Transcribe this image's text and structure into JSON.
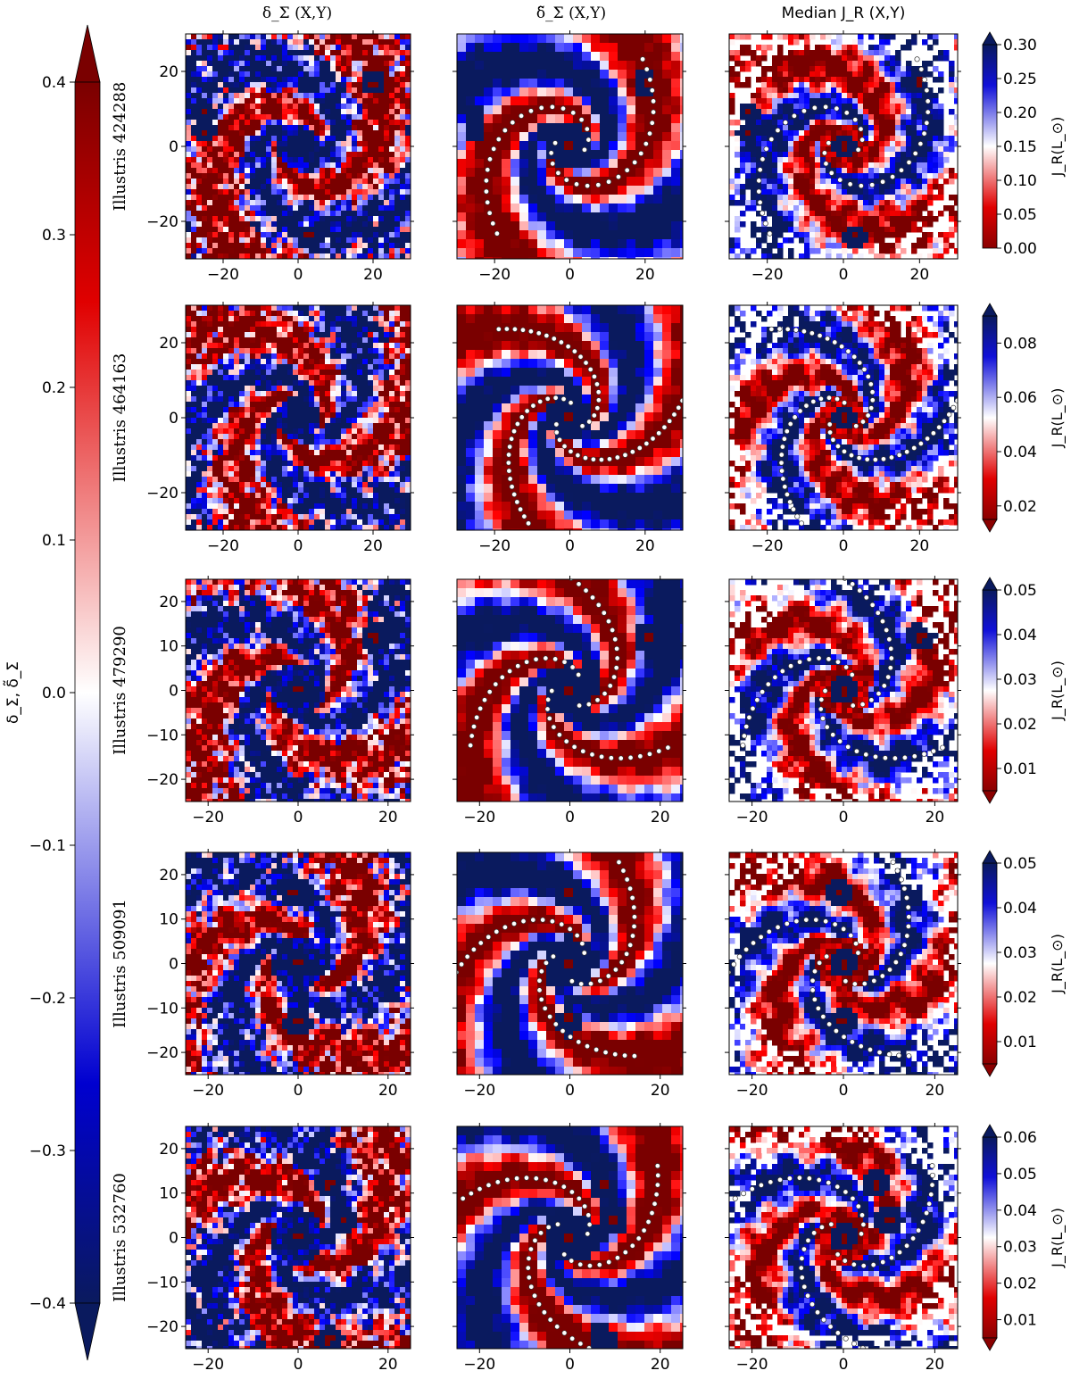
{
  "figure": {
    "column_titles": [
      "δ_Σ (X,Y)",
      "δ̃_Σ (X,Y)",
      "Median J_R (X,Y)"
    ],
    "left_colorbar": {
      "label": "δ_Σ,  δ̃_Σ",
      "range": [
        -0.4,
        0.4
      ],
      "ticks": [
        -0.4,
        -0.3,
        -0.2,
        -0.1,
        0.0,
        0.1,
        0.2,
        0.3,
        0.4
      ],
      "tick_labels": [
        "−0.4",
        "−0.3",
        "−0.2",
        "−0.1",
        "0.0",
        "0.1",
        "0.2",
        "0.3",
        "0.4"
      ],
      "extend": "both",
      "colormap": "seismic_r",
      "colors": {
        "low": "#0a1a5e",
        "mid": "#ffffff",
        "high": "#7a0000"
      }
    },
    "jr_colorbar_label": "J_R(L_⊙)"
  },
  "chart_data": [
    {
      "type": "heatmap",
      "row_label": "Illustris 424288",
      "x_ticks": [
        -20,
        0,
        20
      ],
      "y_ticks": [
        -20,
        0,
        20
      ],
      "xlim": [
        -30,
        30
      ],
      "ylim": [
        -30,
        30
      ],
      "jr_colorbar": {
        "range": [
          0.0,
          0.3
        ],
        "ticks": [
          "0.00",
          "0.05",
          "0.10",
          "0.15",
          "0.20",
          "0.25",
          "0.30"
        ],
        "extend": "max"
      },
      "satellite_holes": [
        [
          -25,
          9
        ],
        [
          -25,
          4
        ],
        [
          20,
          17
        ],
        [
          3,
          -24
        ],
        [
          0,
          0
        ]
      ],
      "spiral_arms": 2
    },
    {
      "type": "heatmap",
      "row_label": "Illustris 464163",
      "x_ticks": [
        -20,
        0,
        20
      ],
      "y_ticks": [
        -20,
        0,
        20
      ],
      "xlim": [
        -30,
        30
      ],
      "ylim": [
        -30,
        30
      ],
      "jr_colorbar": {
        "range": [
          0.015,
          0.09
        ],
        "ticks": [
          "0.02",
          "0.04",
          "0.06",
          "0.08"
        ],
        "extend": "both"
      },
      "satellite_holes": [
        [
          0,
          0
        ]
      ],
      "spiral_arms": 3
    },
    {
      "type": "heatmap",
      "row_label": "Illustris 479290",
      "x_ticks": [
        -20,
        0,
        20
      ],
      "y_ticks": [
        -20,
        -10,
        0,
        10,
        20
      ],
      "xlim": [
        -25,
        25
      ],
      "ylim": [
        -25,
        25
      ],
      "jr_colorbar": {
        "range": [
          0.005,
          0.05
        ],
        "ticks": [
          "0.01",
          "0.02",
          "0.03",
          "0.04",
          "0.05"
        ],
        "extend": "both"
      },
      "satellite_holes": [
        [
          0,
          0
        ],
        [
          17,
          12
        ]
      ],
      "spiral_arms": 3
    },
    {
      "type": "heatmap",
      "row_label": "Illustris 509091",
      "x_ticks": [
        -20,
        0,
        20
      ],
      "y_ticks": [
        -20,
        -10,
        0,
        10,
        20
      ],
      "xlim": [
        -25,
        25
      ],
      "ylim": [
        -25,
        25
      ],
      "jr_colorbar": {
        "range": [
          0.005,
          0.05
        ],
        "ticks": [
          "0.01",
          "0.02",
          "0.03",
          "0.04",
          "0.05"
        ],
        "extend": "both"
      },
      "satellite_holes": [
        [
          0,
          0
        ],
        [
          -1,
          16
        ],
        [
          0,
          -13
        ]
      ],
      "spiral_arms": 3
    },
    {
      "type": "heatmap",
      "row_label": "Illustris 532760",
      "x_ticks": [
        -20,
        0,
        20
      ],
      "y_ticks": [
        -20,
        -10,
        0,
        10,
        20
      ],
      "xlim": [
        -25,
        25
      ],
      "ylim": [
        -25,
        25
      ],
      "jr_colorbar": {
        "range": [
          0.005,
          0.06
        ],
        "ticks": [
          "0.01",
          "0.02",
          "0.03",
          "0.04",
          "0.05",
          "0.06"
        ],
        "extend": "both"
      },
      "satellite_holes": [
        [
          0,
          0
        ],
        [
          7,
          12
        ],
        [
          10,
          4
        ],
        [
          7,
          -23
        ]
      ],
      "spiral_arms": 3
    }
  ]
}
